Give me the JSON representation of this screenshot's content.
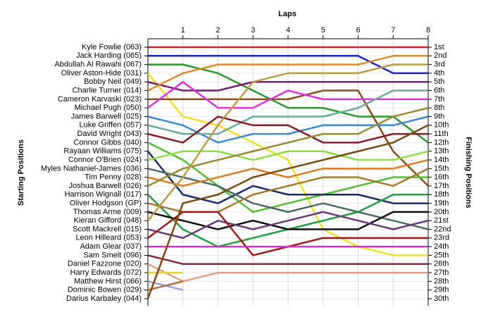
{
  "chart_data": {
    "type": "lap",
    "title": "Laps",
    "ylabel": "Starting Positions",
    "y2label": "Finishing Positions",
    "x": [
      0,
      1,
      2,
      3,
      4,
      5,
      6,
      7,
      8
    ],
    "xlim": [
      0,
      8
    ],
    "xticks": [
      1,
      2,
      3,
      4,
      5,
      6,
      7,
      8
    ],
    "ylim": [
      1,
      30
    ],
    "yticks": [
      {
        "value": 1,
        "label": "1st"
      },
      {
        "value": 2,
        "label": "2nd"
      },
      {
        "value": 3,
        "label": "3rd"
      },
      {
        "value": 4,
        "label": "4th"
      },
      {
        "value": 5,
        "label": "5th"
      },
      {
        "value": 6,
        "label": "6th"
      },
      {
        "value": 7,
        "label": "7th"
      },
      {
        "value": 8,
        "label": "8th"
      },
      {
        "value": 9,
        "label": "9th"
      },
      {
        "value": 10,
        "label": "10th"
      },
      {
        "value": 11,
        "label": "11th"
      },
      {
        "value": 12,
        "label": "12th"
      },
      {
        "value": 13,
        "label": "13th"
      },
      {
        "value": 14,
        "label": "14th"
      },
      {
        "value": 15,
        "label": "15th"
      },
      {
        "value": 16,
        "label": "16th"
      },
      {
        "value": 17,
        "label": "17th"
      },
      {
        "value": 18,
        "label": "18th"
      },
      {
        "value": 19,
        "label": "19th"
      },
      {
        "value": 20,
        "label": "20th"
      },
      {
        "value": 21,
        "label": "21st"
      },
      {
        "value": 22,
        "label": "22nd"
      },
      {
        "value": 23,
        "label": "23rd"
      },
      {
        "value": 24,
        "label": "24th"
      },
      {
        "value": 25,
        "label": "25th"
      },
      {
        "value": 26,
        "label": "26th"
      },
      {
        "value": 27,
        "label": "27th"
      },
      {
        "value": 28,
        "label": "28th"
      },
      {
        "value": 29,
        "label": "29th"
      },
      {
        "value": 30,
        "label": "30th"
      }
    ],
    "grid": true,
    "series": [
      {
        "name": "Kyle Fowlie (063)",
        "color": "#c0282d",
        "values": [
          1,
          1,
          1,
          1,
          1,
          1,
          1,
          1,
          1
        ]
      },
      {
        "name": "Jack Harding (065)",
        "color": "#1c22c8",
        "values": [
          2,
          2,
          2,
          2,
          2,
          2,
          2,
          4,
          4
        ]
      },
      {
        "name": "Abdullah Al Rawahi (067)",
        "color": "#2a9a2a",
        "values": [
          3,
          3,
          4,
          6,
          8,
          8,
          9,
          9,
          12
        ]
      },
      {
        "name": "Oliver Aston-Hide (031)",
        "color": "#f2e020",
        "values": [
          4,
          9,
          10,
          12,
          14,
          22,
          24,
          25,
          25
        ]
      },
      {
        "name": "Bobby Neil (049)",
        "color": "#7a1a7a",
        "values": [
          5,
          6,
          6,
          5,
          5,
          5,
          5,
          5,
          5
        ]
      },
      {
        "name": "Charlie Turner (014)",
        "color": "#e08a30",
        "values": [
          6,
          4,
          3,
          3,
          3,
          3,
          3,
          2,
          2
        ]
      },
      {
        "name": "Cameron Karvaski (023)",
        "color": "#8a4a1a",
        "values": [
          7,
          7,
          7,
          7,
          7,
          6,
          6,
          13,
          17
        ]
      },
      {
        "name": "Michael Pugh (050)",
        "color": "#e030e0",
        "values": [
          8,
          5,
          8,
          8,
          6,
          7,
          7,
          7,
          7
        ]
      },
      {
        "name": "James Barwell (025)",
        "color": "#3a8ad8",
        "values": [
          9,
          10,
          12,
          11,
          11,
          10,
          10,
          10,
          9
        ]
      },
      {
        "name": "Luke Griffen (057)",
        "color": "#6aaa9a",
        "values": [
          10,
          11,
          11,
          9,
          9,
          9,
          8,
          6,
          6
        ]
      },
      {
        "name": "David Wright (043)",
        "color": "#8a1a2a",
        "values": [
          11,
          12,
          9,
          10,
          10,
          12,
          12,
          11,
          11
        ]
      },
      {
        "name": "Connor Gibbs (040)",
        "color": "#50c030",
        "values": [
          12,
          14,
          17,
          20,
          19,
          18,
          17,
          16,
          16
        ]
      },
      {
        "name": "Rayaan Williams (075)",
        "color": "#1a2a6a",
        "values": [
          13,
          18,
          19,
          17,
          18,
          18,
          18,
          19,
          19
        ]
      },
      {
        "name": "Connor O'Brien (024)",
        "color": "#8ae040",
        "values": [
          14,
          13,
          13,
          14,
          13,
          13,
          14,
          14,
          13
        ]
      },
      {
        "name": "Myles Nathaniel-James (036)",
        "color": "#4a6a6a",
        "values": [
          15,
          16,
          17,
          19,
          20,
          19,
          20,
          21,
          22
        ]
      },
      {
        "name": "Tim Penny (028)",
        "color": "#e07a20",
        "values": [
          16,
          17,
          16,
          15,
          16,
          15,
          15,
          15,
          14
        ]
      },
      {
        "name": "Joshua Barwell (026)",
        "color": "#9a8a30",
        "values": [
          17,
          15,
          14,
          13,
          12,
          11,
          11,
          9,
          8
        ]
      },
      {
        "name": "Harrison Wignall (017)",
        "color": "#20a040",
        "values": [
          18,
          22,
          24,
          23,
          22,
          21,
          20,
          18,
          18
        ]
      },
      {
        "name": "Oliver Hodgson (GP)",
        "color": "#aa7a2a",
        "values": [
          19,
          20,
          20,
          18,
          17,
          16,
          16,
          17,
          15
        ]
      },
      {
        "name": "Thomas Arme (009)",
        "color": "#101010",
        "values": [
          20,
          21,
          22,
          21,
          22,
          22,
          22,
          20,
          20
        ]
      },
      {
        "name": "Kieran Gifford (048)",
        "color": "#c09a40",
        "values": [
          21,
          16,
          10,
          5,
          4,
          4,
          4,
          3,
          3
        ]
      },
      {
        "name": "Scott Mackrell (015)",
        "color": "#6a3a7a",
        "values": [
          22,
          23,
          21,
          22,
          21,
          20,
          21,
          22,
          21
        ]
      },
      {
        "name": "Leon Hilleard (053)",
        "color": "#a01a1a",
        "values": [
          23,
          20,
          20,
          25,
          24,
          23,
          23,
          23,
          23
        ]
      },
      {
        "name": "Adam Glear (037)",
        "color": "#d030d0",
        "values": [
          24,
          24,
          24,
          24,
          24,
          24,
          24,
          24,
          24
        ]
      },
      {
        "name": "Sam Smelt (096)",
        "color": "#8a2a3a",
        "values": [
          25,
          26,
          26,
          26,
          26,
          26,
          26,
          26,
          26
        ]
      },
      {
        "name": "Daniel Fazzone (020)",
        "color": "#e0a080",
        "values": [
          26,
          28,
          27,
          27,
          27,
          27,
          27,
          27,
          27
        ]
      },
      {
        "name": "Harry Edwards (072)",
        "color": "#e8d030",
        "values": [
          27,
          27,
          null,
          null,
          null,
          null,
          null,
          null,
          null
        ]
      },
      {
        "name": "Matthew Hirst (066)",
        "color": "#9aa0d8",
        "values": [
          28,
          29,
          null,
          null,
          null,
          null,
          null,
          null,
          null
        ]
      },
      {
        "name": "Dominic Bowen (029)",
        "color": "#b07040",
        "values": [
          29,
          28,
          null,
          null,
          null,
          null,
          null,
          null,
          null
        ]
      },
      {
        "name": "Darius Karbaley (044)",
        "color": "#7a4a10",
        "values": [
          30,
          19,
          18,
          16,
          15,
          14,
          13,
          12,
          10
        ]
      }
    ]
  }
}
